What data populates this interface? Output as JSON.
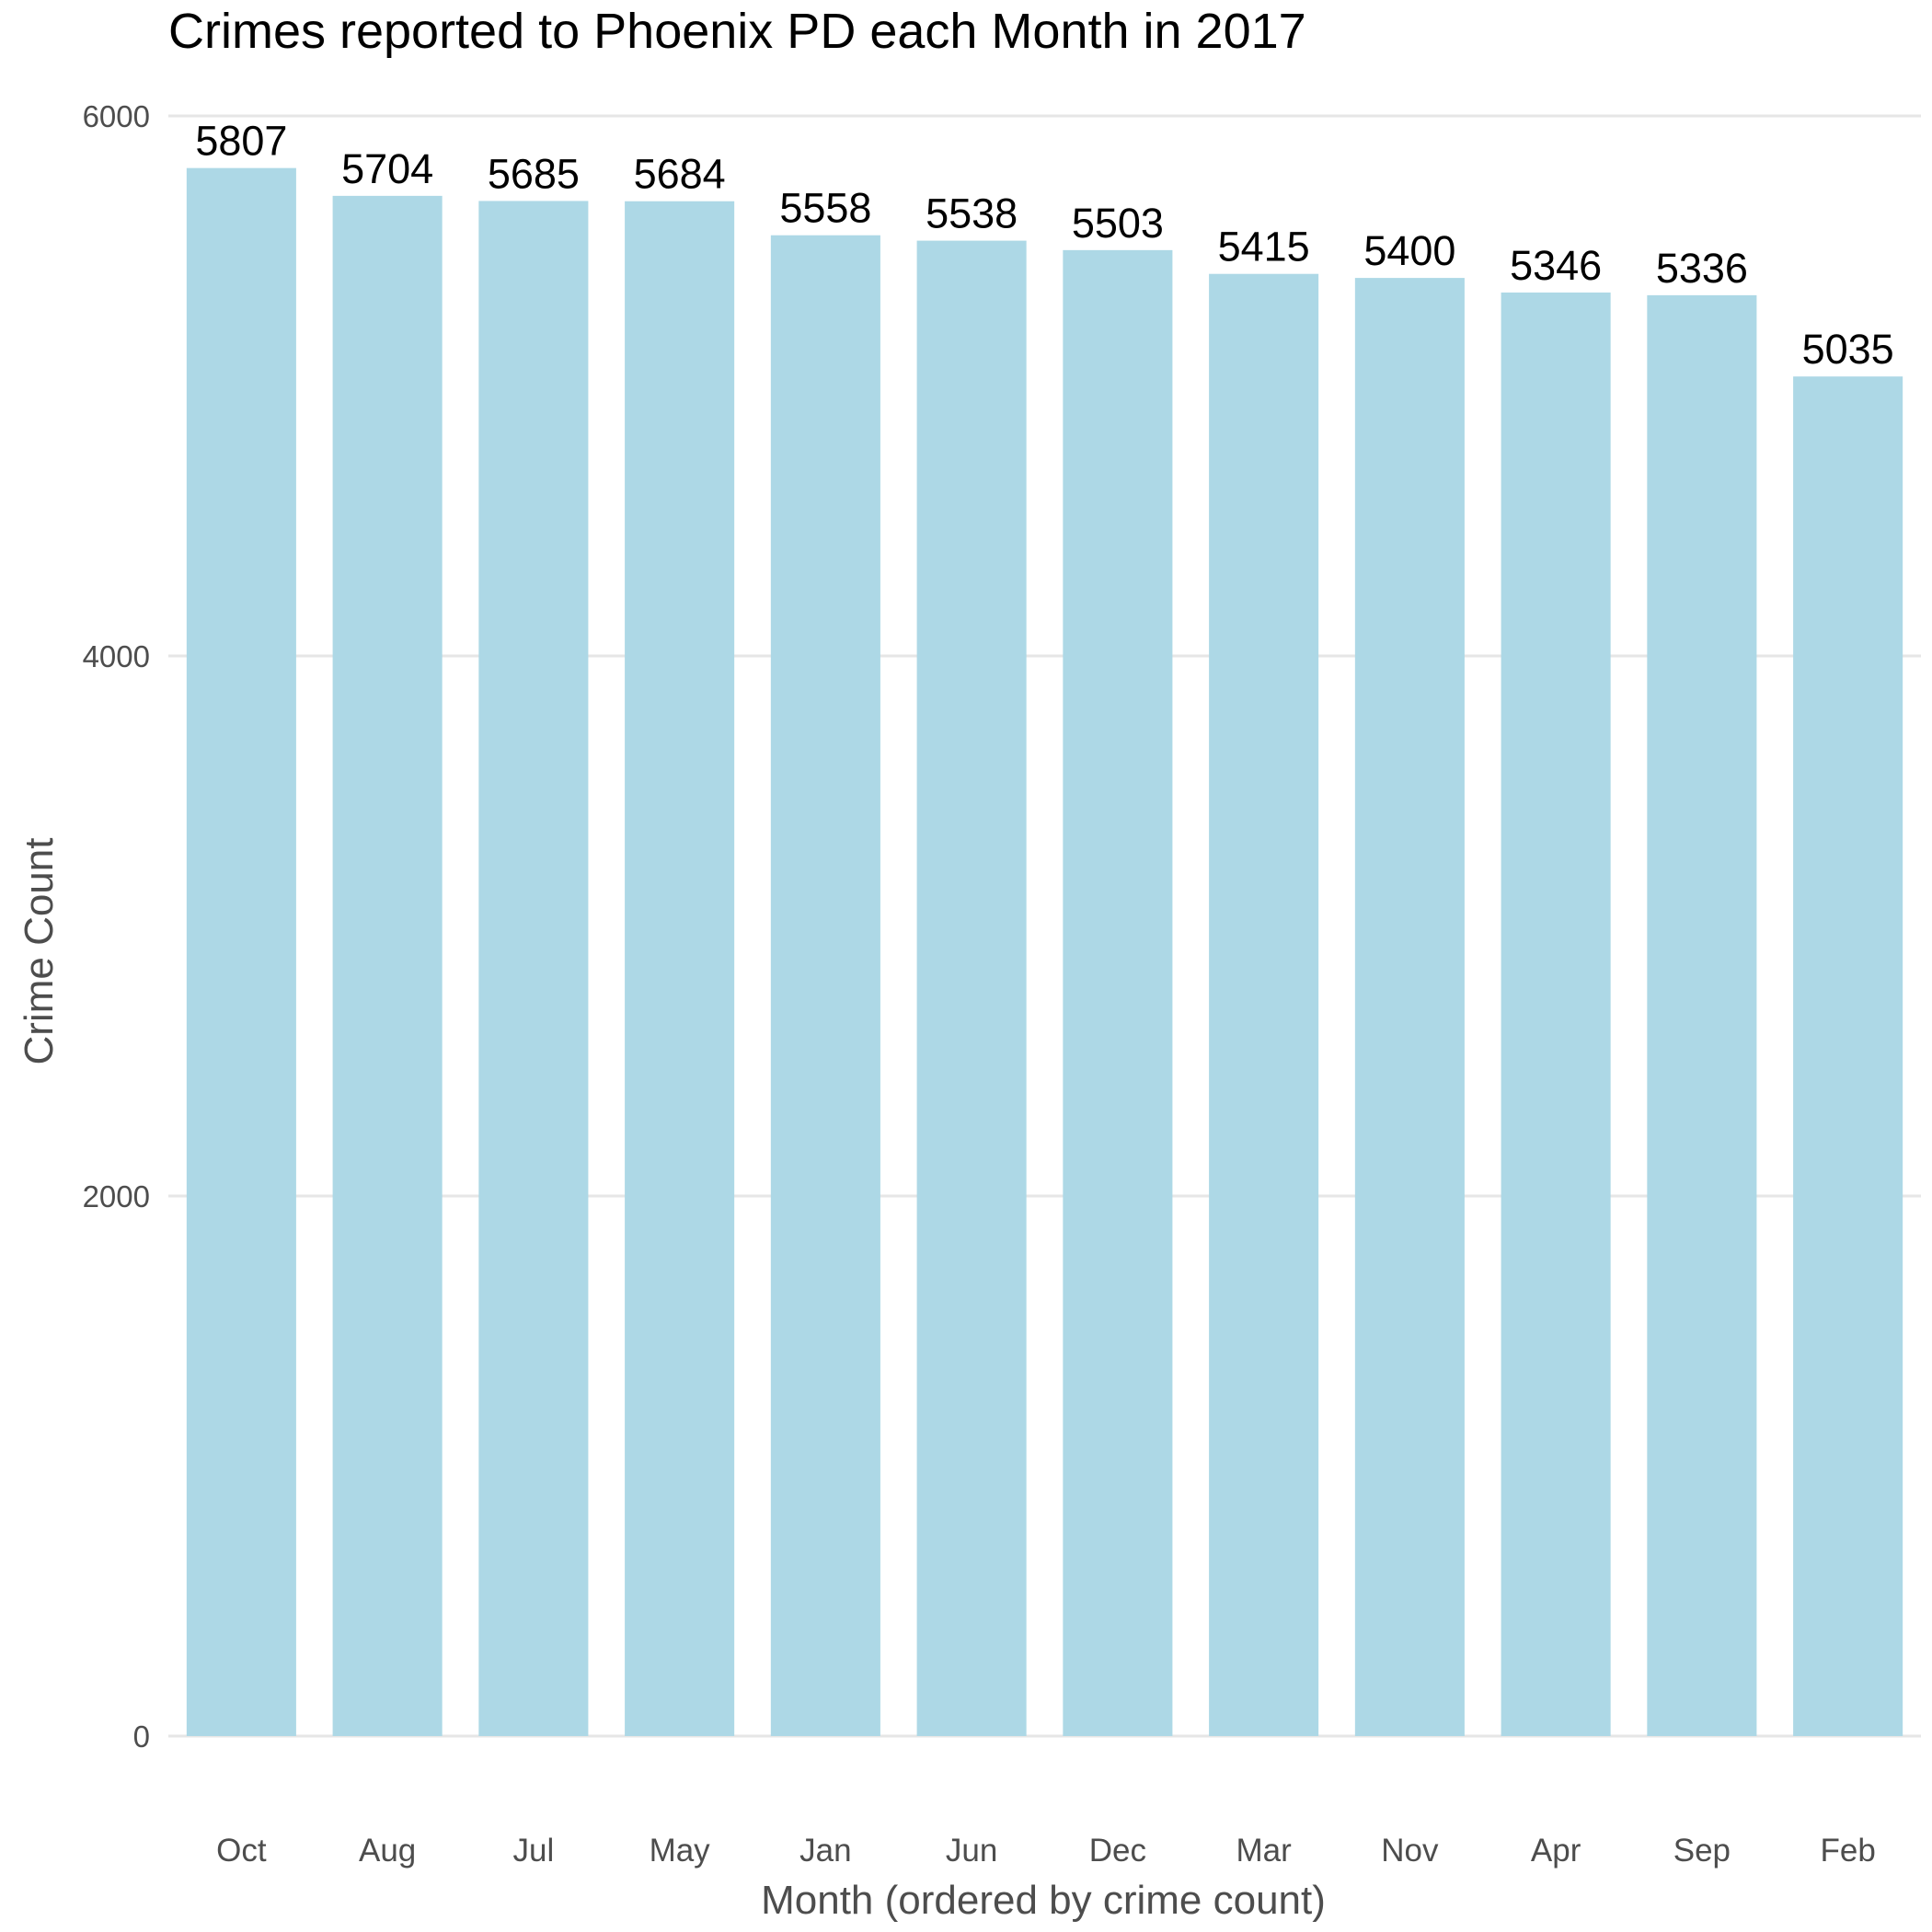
{
  "chart_data": {
    "type": "bar",
    "title": "Crimes reported to Phoenix PD each Month in 2017",
    "xlabel": "Month (ordered by crime count)",
    "ylabel": "Crime Count",
    "categories": [
      "Oct",
      "Aug",
      "Jul",
      "May",
      "Jan",
      "Jun",
      "Dec",
      "Mar",
      "Nov",
      "Apr",
      "Sep",
      "Feb"
    ],
    "values": [
      5807,
      5704,
      5685,
      5684,
      5558,
      5538,
      5503,
      5415,
      5400,
      5346,
      5336,
      5035
    ],
    "ylim": [
      0,
      6000
    ],
    "yticks": [
      0,
      2000,
      4000,
      6000
    ],
    "grid": "horizontal",
    "bar_color": "#add8e6"
  }
}
